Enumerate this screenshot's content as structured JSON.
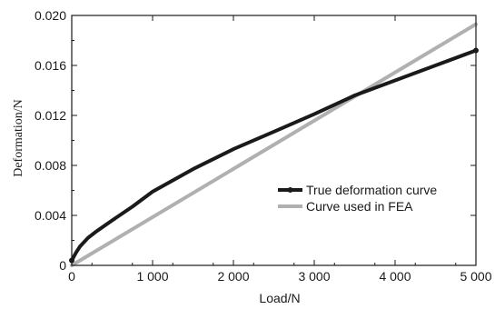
{
  "chart_data": {
    "type": "line",
    "title": "",
    "xlabel": "Load/N",
    "ylabel": "Deformation/N",
    "xlim": [
      0,
      5000
    ],
    "ylim": [
      0,
      0.02
    ],
    "x_ticks": [
      0,
      1000,
      2000,
      3000,
      4000,
      5000
    ],
    "x_tick_labels": [
      "0",
      "1 000",
      "2 000",
      "3 000",
      "4 000",
      "5 000"
    ],
    "y_ticks": [
      0,
      0.004,
      0.008,
      0.012,
      0.016,
      0.02
    ],
    "y_tick_labels": [
      "0",
      "0.004",
      "0.008",
      "0.012",
      "0.016",
      "0.020"
    ],
    "grid": false,
    "legend_position": "center-right",
    "series": [
      {
        "name": "True deformation curve",
        "color": "#1a1a1a",
        "x": [
          0,
          50,
          100,
          200,
          300,
          500,
          750,
          1000,
          1500,
          2000,
          2500,
          3000,
          3500,
          4000,
          4500,
          5000
        ],
        "y": [
          0.0004,
          0.001,
          0.0015,
          0.0022,
          0.0027,
          0.0036,
          0.0047,
          0.0059,
          0.0077,
          0.0093,
          0.0107,
          0.0121,
          0.0136,
          0.0148,
          0.016,
          0.0172
        ]
      },
      {
        "name": "Curve used in FEA",
        "color": "#b0b0b0",
        "x": [
          0,
          5000
        ],
        "y": [
          0.0,
          0.0193
        ]
      }
    ]
  }
}
